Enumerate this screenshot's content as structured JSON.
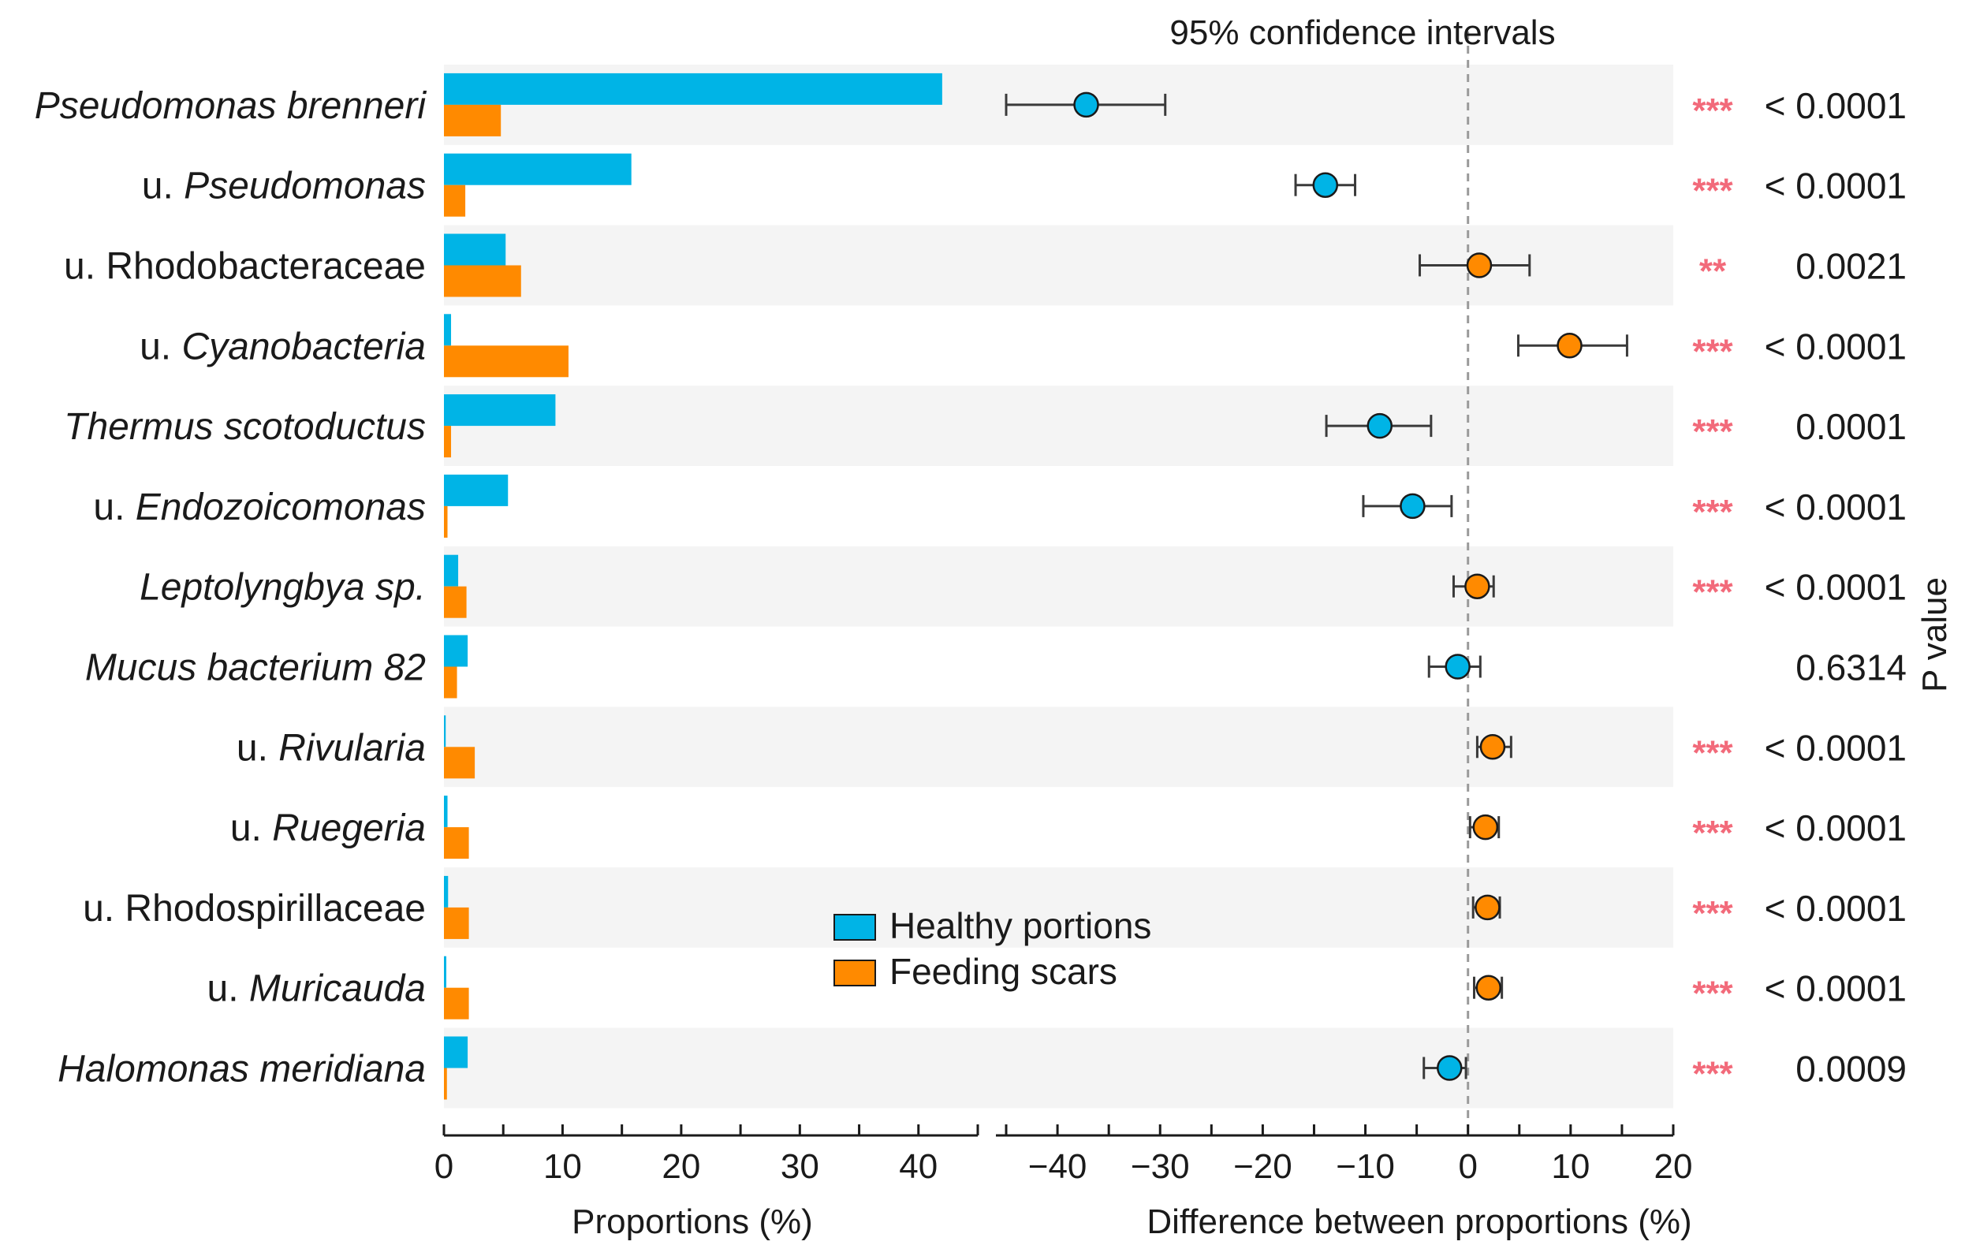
{
  "chart_data": {
    "type": "bar",
    "title": "95% confidence intervals",
    "left_panel": {
      "xlabel": "Proportions (%)",
      "xlim": [
        0,
        45
      ],
      "ticks": [
        "0",
        "10",
        "20",
        "30",
        "40"
      ],
      "tick_values": [
        0,
        10,
        20,
        30,
        40
      ]
    },
    "right_panel": {
      "xlabel": "Difference between proportions (%)",
      "xlim": [
        -46,
        20
      ],
      "ticks": [
        "−40",
        "−30",
        "−20",
        "−10",
        "0",
        "10",
        "20"
      ],
      "tick_values": [
        -40,
        -30,
        -20,
        -10,
        0,
        10,
        20
      ]
    },
    "pvalue_label": "P value",
    "legend": {
      "healthy": "Healthy portions",
      "scars": "Feeding scars"
    },
    "colors": {
      "healthy": "#00b4e6",
      "scars": "#ff8a00",
      "stars": "#f26a7a",
      "stripe": "#f4f4f4"
    },
    "rows": [
      {
        "label_prefix": "",
        "label_main": "Pseudomonas brenneri",
        "italic": true,
        "healthy": 42.0,
        "scars": 4.8,
        "diff": -37.2,
        "ci": [
          -45.0,
          -29.5
        ],
        "stars": "***",
        "p": "< 0.0001"
      },
      {
        "label_prefix": "u. ",
        "label_main": "Pseudomonas",
        "italic": true,
        "healthy": 15.8,
        "scars": 1.8,
        "diff": -13.9,
        "ci": [
          -16.8,
          -11.0
        ],
        "stars": "***",
        "p": "< 0.0001"
      },
      {
        "label_prefix": "",
        "label_main": "u. Rhodobacteraceae",
        "italic": false,
        "healthy": 5.2,
        "scars": 6.5,
        "diff": 1.1,
        "ci": [
          -4.7,
          6.0
        ],
        "stars": "**",
        "p": "0.0021"
      },
      {
        "label_prefix": "u. ",
        "label_main": "Cyanobacteria",
        "italic": true,
        "healthy": 0.6,
        "scars": 10.5,
        "diff": 9.9,
        "ci": [
          4.9,
          15.5
        ],
        "stars": "***",
        "p": "< 0.0001"
      },
      {
        "label_prefix": "",
        "label_main": "Thermus scotoductus",
        "italic": true,
        "healthy": 9.4,
        "scars": 0.6,
        "diff": -8.6,
        "ci": [
          -13.8,
          -3.6
        ],
        "stars": "***",
        "p": "0.0001"
      },
      {
        "label_prefix": "u. ",
        "label_main": "Endozoicomonas",
        "italic": true,
        "healthy": 5.4,
        "scars": 0.3,
        "diff": -5.4,
        "ci": [
          -10.2,
          -1.6
        ],
        "stars": "***",
        "p": "< 0.0001"
      },
      {
        "label_prefix": "",
        "label_main": "Leptolyngbya sp.",
        "italic": true,
        "healthy": 1.2,
        "scars": 1.9,
        "diff": 0.9,
        "ci": [
          -1.4,
          2.5
        ],
        "stars": "***",
        "p": "< 0.0001"
      },
      {
        "label_prefix": "",
        "label_main": "Mucus bacterium 82",
        "italic": true,
        "healthy": 2.0,
        "scars": 1.1,
        "diff": -1.0,
        "ci": [
          -3.8,
          1.2
        ],
        "stars": "",
        "p": "0.6314"
      },
      {
        "label_prefix": "u. ",
        "label_main": "Rivularia",
        "italic": true,
        "healthy": 0.15,
        "scars": 2.6,
        "diff": 2.4,
        "ci": [
          0.9,
          4.2
        ],
        "stars": "***",
        "p": "< 0.0001"
      },
      {
        "label_prefix": "u. ",
        "label_main": "Ruegeria",
        "italic": true,
        "healthy": 0.3,
        "scars": 2.1,
        "diff": 1.7,
        "ci": [
          0.2,
          3.0
        ],
        "stars": "***",
        "p": "< 0.0001"
      },
      {
        "label_prefix": "",
        "label_main": "u. Rhodospirillaceae",
        "italic": false,
        "healthy": 0.35,
        "scars": 2.1,
        "diff": 1.9,
        "ci": [
          0.5,
          3.1
        ],
        "stars": "***",
        "p": "< 0.0001"
      },
      {
        "label_prefix": "u. ",
        "label_main": "Muricauda",
        "italic": true,
        "healthy": 0.2,
        "scars": 2.1,
        "diff": 2.0,
        "ci": [
          0.6,
          3.3
        ],
        "stars": "***",
        "p": "< 0.0001"
      },
      {
        "label_prefix": "",
        "label_main": "Halomonas meridiana",
        "italic": true,
        "healthy": 2.0,
        "scars": 0.25,
        "diff": -1.8,
        "ci": [
          -4.3,
          -0.2
        ],
        "stars": "***",
        "p": "0.0009"
      }
    ]
  }
}
